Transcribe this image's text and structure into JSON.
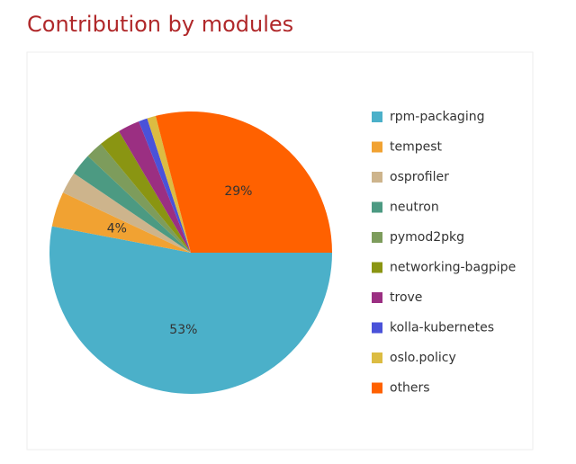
{
  "chart_data": {
    "type": "pie",
    "title": "Contribution by modules",
    "categories": [
      "rpm-packaging",
      "tempest",
      "osprofiler",
      "neutron",
      "pymod2pkg",
      "networking-bagpipe",
      "trove",
      "kolla-kubernetes",
      "oslo.policy",
      "others"
    ],
    "values": [
      53,
      4,
      2.5,
      2.5,
      2,
      2.5,
      2.5,
      1,
      1,
      29
    ],
    "value_labels": [
      "53%",
      "4%",
      null,
      null,
      null,
      null,
      null,
      null,
      null,
      "29%"
    ],
    "colors": [
      "#4bb0c9",
      "#f1a232",
      "#cdb48c",
      "#4c9a82",
      "#7d9c5c",
      "#8a9512",
      "#9b2f82",
      "#4a52d9",
      "#dcbc42",
      "#ff6100"
    ],
    "legend": "right"
  }
}
